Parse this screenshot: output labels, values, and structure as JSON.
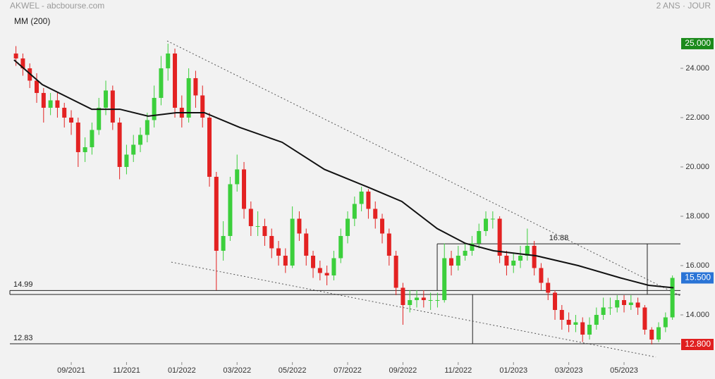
{
  "chart_data": {
    "type": "candlestick",
    "title": "AKWEL - abcbourse.com",
    "subtitle": "2 ANS · JOUR",
    "up_color": "#3ccf3c",
    "down_color": "#e32222",
    "xlim": [
      -2.22,
      22.04
    ],
    "ylim": [
      12.2,
      26.77
    ],
    "xticks": [
      {
        "value": 0,
        "label": "09/2021"
      },
      {
        "value": 2,
        "label": "11/2021"
      },
      {
        "value": 4,
        "label": "01/2022"
      },
      {
        "value": 6,
        "label": "03/2022"
      },
      {
        "value": 8,
        "label": "05/2022"
      },
      {
        "value": 10,
        "label": "07/2022"
      },
      {
        "value": 12,
        "label": "09/2022"
      },
      {
        "value": 14,
        "label": "11/2022"
      },
      {
        "value": 16,
        "label": "01/2023"
      },
      {
        "value": 18,
        "label": "03/2023"
      },
      {
        "value": 20,
        "label": "05/2023"
      }
    ],
    "yticks": [
      {
        "value": 14,
        "label": "14.000"
      },
      {
        "value": 16,
        "label": "16.000"
      },
      {
        "value": 18,
        "label": "18.000"
      },
      {
        "value": 20,
        "label": "20.000"
      },
      {
        "value": 22,
        "label": "22.000"
      },
      {
        "value": 24,
        "label": "24.000"
      }
    ],
    "x": [
      -2.0,
      -1.75,
      -1.5,
      -1.25,
      -1.0,
      -0.75,
      -0.5,
      -0.25,
      0,
      0.25,
      0.5,
      0.75,
      1.0,
      1.25,
      1.5,
      1.75,
      2.0,
      2.25,
      2.5,
      2.75,
      3.0,
      3.25,
      3.5,
      3.75,
      4.0,
      4.25,
      4.5,
      4.75,
      5.0,
      5.25,
      5.5,
      5.75,
      6.0,
      6.25,
      6.5,
      6.75,
      7.0,
      7.25,
      7.5,
      7.75,
      8.0,
      8.25,
      8.5,
      8.75,
      9.0,
      9.25,
      9.5,
      9.75,
      10.0,
      10.25,
      10.5,
      10.75,
      11.0,
      11.25,
      11.5,
      11.75,
      12.0,
      12.25,
      12.5,
      12.75,
      13.0,
      13.25,
      13.5,
      13.75,
      14.0,
      14.25,
      14.5,
      14.75,
      15.0,
      15.25,
      15.5,
      15.75,
      16.0,
      16.25,
      16.5,
      16.75,
      17.0,
      17.25,
      17.5,
      17.75,
      18.0,
      18.25,
      18.5,
      18.75,
      19.0,
      19.25,
      19.5,
      19.75,
      20.0,
      20.25,
      20.5,
      20.75,
      21.0,
      21.25,
      21.5,
      21.75
    ],
    "open": [
      24.6,
      24.4,
      24.0,
      23.5,
      23.0,
      22.4,
      22.7,
      22.4,
      22.0,
      21.8,
      20.6,
      20.8,
      21.5,
      22.4,
      23.1,
      21.8,
      20.0,
      20.5,
      20.9,
      21.3,
      21.9,
      22.8,
      24.0,
      24.6,
      22.4,
      22.0,
      23.6,
      22.9,
      22.0,
      19.6,
      16.6,
      17.2,
      19.3,
      19.9,
      18.3,
      17.6,
      17.6,
      17.2,
      16.7,
      16.4,
      16.0,
      17.9,
      17.3,
      16.4,
      15.9,
      15.7,
      15.6,
      16.3,
      17.2,
      17.9,
      18.5,
      19.0,
      18.3,
      17.9,
      17.3,
      16.4,
      15.1,
      14.4,
      14.6,
      14.7,
      14.6,
      14.6,
      14.6,
      16.3,
      16.0,
      16.4,
      16.6,
      16.9,
      17.4,
      17.9,
      17.9,
      16.4,
      16.0,
      16.2,
      16.4,
      16.8,
      15.9,
      15.3,
      14.9,
      14.2,
      13.8,
      13.6,
      13.7,
      13.2,
      13.6,
      14.0,
      14.3,
      14.3,
      14.6,
      14.4,
      14.5,
      14.3,
      13.4,
      13.0,
      13.5,
      13.9
    ],
    "high": [
      24.9,
      24.6,
      24.2,
      23.8,
      23.2,
      23.0,
      23.0,
      22.6,
      22.3,
      22.0,
      21.2,
      21.8,
      22.8,
      23.5,
      23.3,
      22.0,
      20.9,
      21.3,
      21.6,
      22.2,
      23.3,
      24.5,
      25.0,
      24.8,
      22.9,
      24.0,
      23.9,
      23.3,
      22.2,
      19.8,
      17.8,
      19.6,
      20.5,
      20.2,
      18.6,
      18.2,
      17.9,
      17.5,
      17.0,
      16.7,
      18.4,
      18.2,
      17.5,
      16.6,
      16.2,
      16.0,
      16.6,
      17.5,
      18.2,
      18.8,
      19.2,
      19.1,
      18.6,
      18.1,
      17.5,
      16.6,
      15.3,
      15.0,
      15.0,
      15.0,
      14.9,
      14.9,
      16.9,
      16.6,
      16.8,
      16.9,
      17.2,
      17.7,
      18.2,
      18.2,
      18.0,
      16.6,
      16.5,
      16.8,
      17.5,
      17.0,
      16.1,
      15.5,
      15.0,
      14.4,
      14.1,
      14.0,
      13.9,
      13.9,
      14.3,
      14.7,
      14.7,
      14.8,
      14.8,
      14.8,
      14.7,
      14.4,
      13.5,
      13.7,
      14.1,
      15.6
    ],
    "low": [
      24.1,
      23.7,
      23.2,
      22.6,
      21.8,
      22.1,
      22.0,
      21.6,
      21.3,
      20.0,
      20.2,
      20.5,
      21.3,
      22.1,
      21.5,
      19.5,
      19.7,
      20.2,
      20.6,
      21.0,
      21.6,
      22.5,
      23.5,
      22.0,
      21.6,
      21.8,
      22.4,
      21.6,
      19.2,
      15.0,
      16.2,
      17.0,
      19.0,
      17.9,
      17.2,
      17.2,
      16.8,
      16.3,
      16.0,
      15.7,
      15.9,
      17.0,
      16.0,
      15.5,
      15.4,
      15.2,
      15.4,
      16.1,
      16.9,
      17.6,
      18.2,
      17.9,
      17.5,
      16.9,
      16.0,
      14.8,
      13.6,
      14.1,
      14.3,
      14.3,
      14.2,
      14.3,
      14.5,
      15.6,
      15.8,
      16.2,
      16.4,
      16.7,
      17.2,
      17.5,
      16.1,
      15.6,
      15.7,
      15.9,
      16.2,
      15.6,
      15.0,
      14.6,
      13.8,
      13.4,
      13.3,
      13.3,
      12.9,
      13.0,
      13.4,
      13.8,
      14.0,
      14.1,
      14.1,
      14.2,
      14.0,
      13.2,
      12.8,
      12.9,
      13.3,
      13.8
    ],
    "close": [
      24.4,
      24.0,
      23.5,
      23.0,
      22.4,
      22.7,
      22.4,
      22.0,
      21.8,
      20.6,
      20.8,
      21.5,
      22.4,
      23.1,
      21.8,
      20.0,
      20.5,
      20.9,
      21.3,
      21.9,
      22.8,
      24.0,
      24.6,
      22.4,
      22.0,
      23.6,
      22.9,
      22.0,
      19.6,
      16.6,
      17.2,
      19.3,
      19.9,
      18.3,
      17.6,
      17.6,
      17.2,
      16.7,
      16.4,
      16.0,
      17.9,
      17.3,
      16.4,
      15.9,
      15.7,
      15.6,
      16.3,
      17.2,
      17.9,
      18.5,
      19.0,
      18.3,
      17.9,
      17.3,
      16.4,
      15.1,
      14.4,
      14.6,
      14.7,
      14.6,
      14.6,
      14.6,
      16.3,
      16.0,
      16.4,
      16.6,
      16.9,
      17.4,
      17.9,
      17.9,
      16.4,
      16.0,
      16.2,
      16.4,
      16.8,
      15.9,
      15.3,
      14.9,
      14.2,
      13.8,
      13.6,
      13.7,
      13.2,
      13.6,
      14.0,
      14.3,
      14.3,
      14.6,
      14.4,
      14.5,
      14.3,
      13.4,
      13.0,
      13.5,
      13.9,
      15.5
    ],
    "ma": {
      "name": "MM (200)",
      "color": "#111111",
      "x": [
        -2.07,
        -1.05,
        -0.03,
        0.74,
        1.76,
        2.78,
        3.8,
        4.82,
        6.1,
        7.63,
        9.16,
        10.69,
        11.96,
        13.24,
        14.26,
        15.28,
        16.81,
        18.34,
        19.87,
        20.89,
        21.79
      ],
      "values": [
        24.34,
        23.34,
        22.77,
        22.34,
        22.34,
        22.06,
        22.2,
        22.2,
        21.6,
        21.0,
        19.9,
        19.2,
        18.6,
        17.5,
        16.9,
        16.6,
        16.4,
        16.0,
        15.5,
        15.2,
        15.1
      ]
    },
    "trendlines": [
      {
        "x": [
          3.47,
          22.04
        ],
        "y": [
          25.11,
          14.77
        ]
      },
      {
        "x": [
          3.62,
          21.15
        ],
        "y": [
          16.14,
          12.29
        ]
      }
    ],
    "segments": [
      {
        "x": [
          -2.22,
          22.04
        ],
        "y": [
          14.83,
          14.83
        ]
      },
      {
        "x": [
          -2.22,
          -2.22
        ],
        "y": [
          14.99,
          14.83
        ]
      },
      {
        "x": [
          13.24,
          13.24
        ],
        "y": [
          16.88,
          14.99
        ]
      },
      {
        "x": [
          20.84,
          20.84
        ],
        "y": [
          16.88,
          14.83
        ]
      },
      {
        "x": [
          14.52,
          14.52
        ],
        "y": [
          14.83,
          12.83
        ]
      }
    ],
    "levels": [
      {
        "value": 14.99,
        "x": [
          -2.22,
          22.04
        ]
      },
      {
        "value": 12.83,
        "x": [
          -2.22,
          22.04
        ]
      },
      {
        "value": 16.88,
        "x": [
          13.24,
          22.04
        ]
      }
    ],
    "badges": [
      {
        "value": 25,
        "label": "25.000",
        "color": "#1b8a1b"
      },
      {
        "value": 15.5,
        "label": "15.500",
        "color": "#2a74d6"
      },
      {
        "value": 12.8,
        "label": "12.800",
        "color": "#e02020"
      }
    ]
  }
}
